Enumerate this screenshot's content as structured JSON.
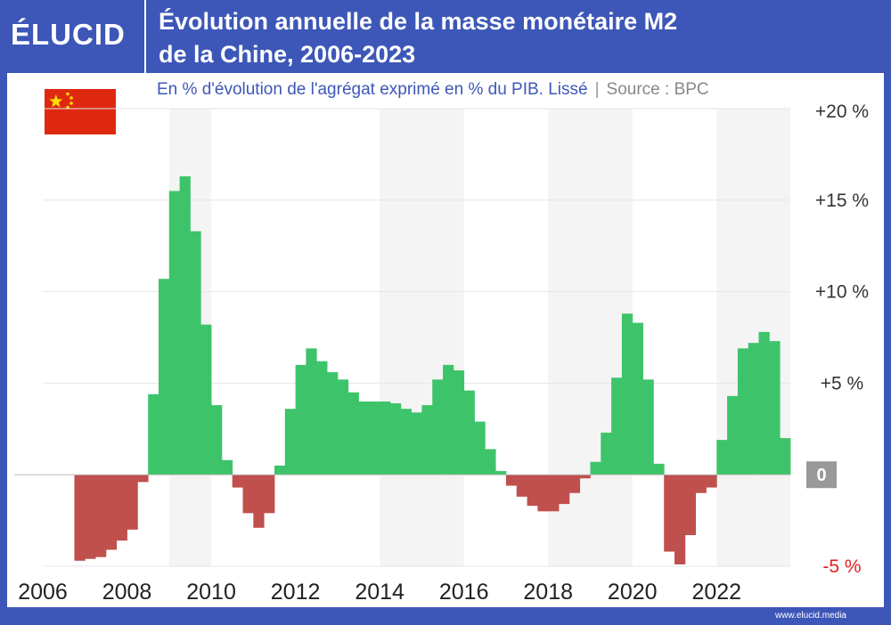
{
  "header": {
    "logo": "ÉLUCID",
    "title_line1": "Évolution annuelle de la masse monétaire M2",
    "title_line2": "de la Chine, 2006-2023"
  },
  "subtitle": {
    "main": "En % d'évolution de l'agrégat exprimé en % du PIB. Lissé",
    "separator": "|",
    "source": "Source : BPC"
  },
  "footer": {
    "site": "www.elucid.media"
  },
  "colors": {
    "brand": "#3d57b8",
    "positive": "#3dc46a",
    "negative": "#c0504d",
    "zero_badge": "#999999",
    "shade": "#f4f4f4"
  },
  "chart_data": {
    "type": "bar",
    "title": "Évolution annuelle de la masse monétaire M2 de la Chine, 2006-2023",
    "xlim": [
      2006,
      2023.75
    ],
    "ylim": [
      -5,
      20
    ],
    "grid": true,
    "x_ticks": [
      {
        "v": 2006,
        "label": "2006"
      },
      {
        "v": 2008,
        "label": "2008"
      },
      {
        "v": 2010,
        "label": "2010"
      },
      {
        "v": 2012,
        "label": "2012"
      },
      {
        "v": 2014,
        "label": "2014"
      },
      {
        "v": 2016,
        "label": "2016"
      },
      {
        "v": 2018,
        "label": "2018"
      },
      {
        "v": 2020,
        "label": "2020"
      },
      {
        "v": 2022,
        "label": "2022"
      }
    ],
    "y_ticks": [
      {
        "v": 20,
        "label": "+20 %"
      },
      {
        "v": 15,
        "label": "+15 %"
      },
      {
        "v": 10,
        "label": "+10 %"
      },
      {
        "v": 5,
        "label": "+5 %"
      },
      {
        "v": 0,
        "label": "0"
      },
      {
        "v": -5,
        "label": "-5 %"
      }
    ],
    "shaded_bands": [
      [
        2009,
        2010
      ],
      [
        2014,
        2016
      ],
      [
        2018,
        2020
      ],
      [
        2022,
        2023.75
      ]
    ],
    "bar_width": 0.25,
    "x": [
      2006.75,
      2007.0,
      2007.25,
      2007.5,
      2007.75,
      2008.0,
      2008.25,
      2008.5,
      2008.75,
      2009.0,
      2009.25,
      2009.5,
      2009.75,
      2010.0,
      2010.25,
      2010.5,
      2010.75,
      2011.0,
      2011.25,
      2011.5,
      2011.75,
      2012.0,
      2012.25,
      2012.5,
      2012.75,
      2013.0,
      2013.25,
      2013.5,
      2013.75,
      2014.0,
      2014.25,
      2014.5,
      2014.75,
      2015.0,
      2015.25,
      2015.5,
      2015.75,
      2016.0,
      2016.25,
      2016.5,
      2016.75,
      2017.0,
      2017.25,
      2017.5,
      2017.75,
      2018.0,
      2018.25,
      2018.5,
      2018.75,
      2019.0,
      2019.25,
      2019.5,
      2019.75,
      2020.0,
      2020.25,
      2020.5,
      2020.75,
      2021.0,
      2021.25,
      2021.5,
      2021.75,
      2022.0,
      2022.25,
      2022.5,
      2022.75,
      2023.0,
      2023.25,
      2023.5
    ],
    "values": [
      -4.7,
      -4.6,
      -4.5,
      -4.1,
      -3.6,
      -3.0,
      -0.4,
      4.4,
      10.7,
      15.5,
      16.3,
      13.3,
      8.2,
      3.8,
      0.8,
      -0.7,
      -2.1,
      -2.9,
      -2.1,
      0.5,
      3.6,
      6.0,
      6.9,
      6.2,
      5.6,
      5.2,
      4.5,
      4.0,
      4.0,
      4.0,
      3.9,
      3.6,
      3.4,
      3.8,
      5.2,
      6.0,
      5.7,
      4.6,
      2.9,
      1.4,
      0.2,
      -0.6,
      -1.2,
      -1.7,
      -2.0,
      -2.0,
      -1.6,
      -1.0,
      -0.2,
      0.7,
      2.3,
      5.3,
      8.8,
      8.3,
      5.2,
      0.6,
      -4.2,
      -4.9,
      -3.3,
      -1.0,
      -0.7,
      1.9,
      4.3,
      6.9,
      7.2,
      7.8,
      7.3,
      2.0
    ]
  }
}
